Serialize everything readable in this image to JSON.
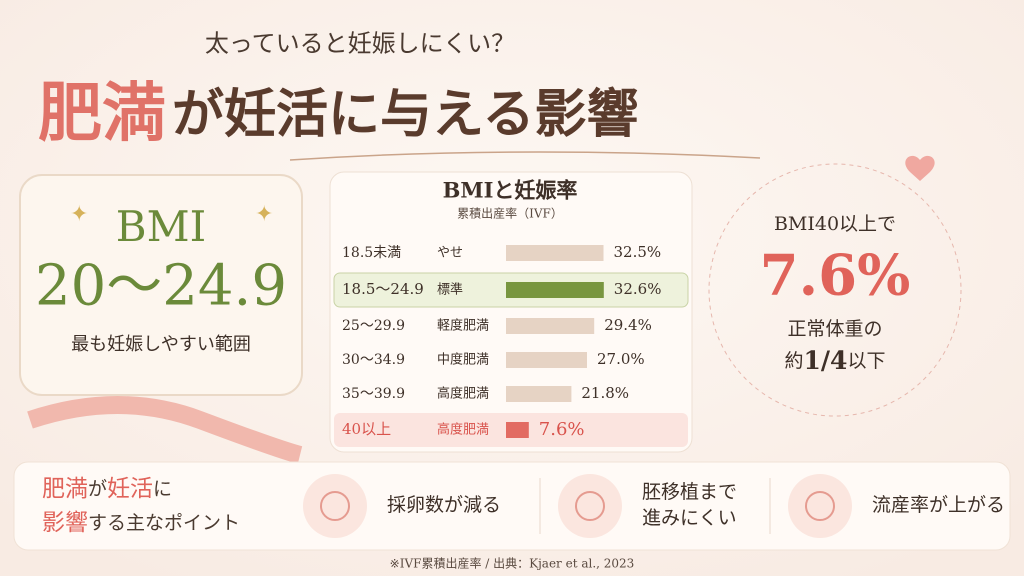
{
  "header": {
    "subtitle": "太っていると妊娠しにくい？",
    "title_emphasis": "肥満",
    "title_rest": "が妊活に与える影響"
  },
  "best_range": {
    "label": "BMI",
    "range": "20〜24.9",
    "caption": "最も妊娠しやすい範囲"
  },
  "chart_data": {
    "type": "bar",
    "orientation": "horizontal",
    "title": "BMIと妊娠率",
    "subtitle": "累積出産率（IVF）",
    "categories": [
      "18.5未満",
      "18.5〜24.9",
      "25〜29.9",
      "30〜34.9",
      "35〜39.9",
      "40以上"
    ],
    "category_notes": [
      "やせ",
      "標準",
      "軽度肥満",
      "中度肥満",
      "高度肥満",
      "高度肥満"
    ],
    "values": [
      32.5,
      32.6,
      29.4,
      27.0,
      21.8,
      7.6
    ],
    "value_labels": [
      "32.5%",
      "32.6%",
      "29.4%",
      "27.0%",
      "21.8%",
      "7.6%"
    ],
    "colors": [
      "#e6d3c4",
      "#78963f",
      "#e6d3c4",
      "#e6d3c4",
      "#e6d3c4",
      "#e26b62"
    ]
  },
  "highlight": {
    "line1": "BMI40以上で",
    "value": "7.6%",
    "line2": "正常体重の",
    "line3_pre": "約",
    "line3_num": "1/4",
    "line3_post": "以下"
  },
  "points": {
    "title_line1": [
      "肥満",
      "が",
      "妊活",
      "に"
    ],
    "title_line2": [
      "影響",
      "する主なポイント"
    ],
    "items": [
      [
        "採卵数が減る"
      ],
      [
        "胚移植まで",
        "進みにくい"
      ],
      [
        "流産率が上がる"
      ]
    ]
  },
  "footnote": "※IVF累積出産率 / 出典：Kjaer et al., 2023"
}
